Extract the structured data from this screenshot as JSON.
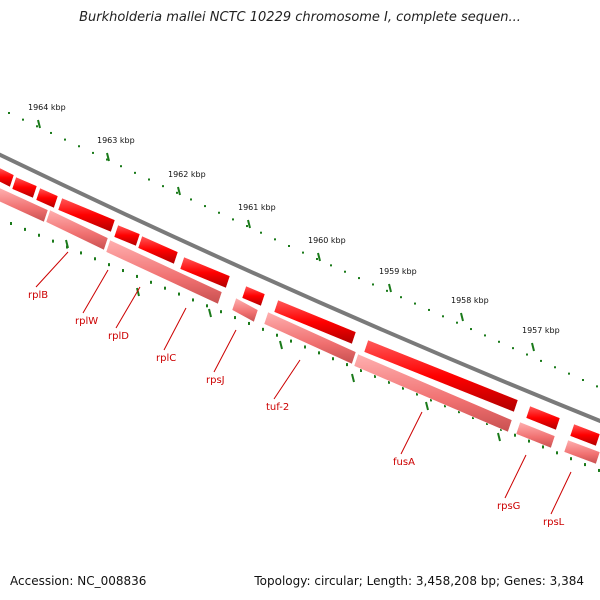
{
  "title": "Burkholderia mallei NCTC 10229 chromosome I, complete sequen...",
  "accession": "Accession: NC_008836",
  "summary": "Topology: circular; Length: 3,458,208 bp; Genes: 3,384",
  "colors": {
    "backbone": "#7a7a7a",
    "gene_dark": "#ff0000",
    "gene_light": "#f08080",
    "ticks": "#1a7a1a",
    "label": "#cc0000"
  },
  "scale": {
    "kbp_labels": [
      "1964 kbp",
      "1963 kbp",
      "1962 kbp",
      "1961 kbp",
      "1960 kbp",
      "1959 kbp",
      "1958 kbp",
      "1957 kbp"
    ]
  },
  "genes": [
    {
      "name": "rplB"
    },
    {
      "name": "rplW"
    },
    {
      "name": "rplD"
    },
    {
      "name": "rplC"
    },
    {
      "name": "rpsJ"
    },
    {
      "name": "tuf-2"
    },
    {
      "name": "fusA"
    },
    {
      "name": "rpsG"
    },
    {
      "name": "rpsL"
    }
  ]
}
